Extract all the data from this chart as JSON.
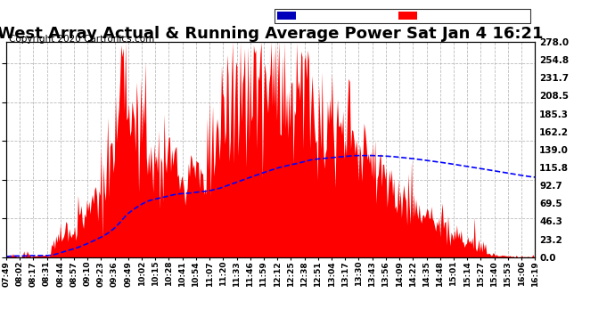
{
  "title": "West Array Actual & Running Average Power Sat Jan 4 16:21",
  "copyright": "Copyright 2020 Cartronics.com",
  "ylabel_right_ticks": [
    0.0,
    23.2,
    46.3,
    69.5,
    92.7,
    115.8,
    139.0,
    162.2,
    185.3,
    208.5,
    231.7,
    254.8,
    278.0
  ],
  "ymax": 278.0,
  "ymin": 0.0,
  "fill_color": "red",
  "line_color": "blue",
  "background_color": "white",
  "grid_color": "#aaaaaa",
  "title_fontsize": 13,
  "copyright_fontsize": 7.5,
  "legend_avg_color": "#0000bb",
  "legend_west_color": "red",
  "x_tick_labels": [
    "07:49",
    "08:02",
    "08:17",
    "08:31",
    "08:44",
    "08:57",
    "09:10",
    "09:23",
    "09:36",
    "09:49",
    "10:02",
    "10:15",
    "10:28",
    "10:41",
    "10:54",
    "11:07",
    "11:20",
    "11:33",
    "11:46",
    "11:59",
    "12:12",
    "12:25",
    "12:38",
    "12:51",
    "13:04",
    "13:17",
    "13:30",
    "13:43",
    "13:56",
    "14:09",
    "14:22",
    "14:35",
    "14:48",
    "15:01",
    "15:14",
    "15:27",
    "15:40",
    "15:53",
    "16:06",
    "16:19"
  ],
  "n_points": 480,
  "seed": 17
}
